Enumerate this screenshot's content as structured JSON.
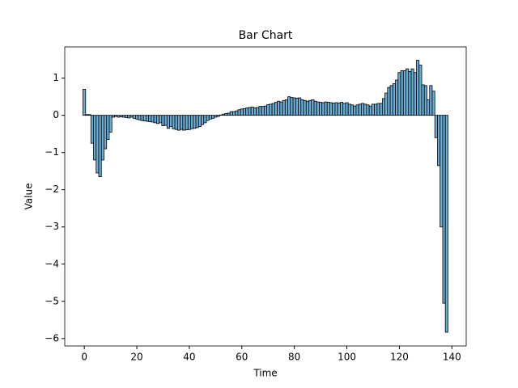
{
  "chart_data": {
    "type": "bar",
    "title": "Bar Chart",
    "x_label": "Time",
    "y_label": "Value",
    "x": [
      0,
      1,
      2,
      3,
      4,
      5,
      6,
      7,
      8,
      9,
      10,
      11,
      12,
      13,
      14,
      15,
      16,
      17,
      18,
      19,
      20,
      21,
      22,
      23,
      24,
      25,
      26,
      27,
      28,
      29,
      30,
      31,
      32,
      33,
      34,
      35,
      36,
      37,
      38,
      39,
      40,
      41,
      42,
      43,
      44,
      45,
      46,
      47,
      48,
      49,
      50,
      51,
      52,
      53,
      54,
      55,
      56,
      57,
      58,
      59,
      60,
      61,
      62,
      63,
      64,
      65,
      66,
      67,
      68,
      69,
      70,
      71,
      72,
      73,
      74,
      75,
      76,
      77,
      78,
      79,
      80,
      81,
      82,
      83,
      84,
      85,
      86,
      87,
      88,
      89,
      90,
      91,
      92,
      93,
      94,
      95,
      96,
      97,
      98,
      99,
      100,
      101,
      102,
      103,
      104,
      105,
      106,
      107,
      108,
      109,
      110,
      111,
      112,
      113,
      114,
      115,
      116,
      117,
      118,
      119,
      120,
      121,
      122,
      123,
      124,
      125,
      126,
      127,
      128,
      129,
      130,
      131,
      132,
      133,
      134,
      135,
      136,
      137,
      138
    ],
    "values": [
      0.7,
      0.02,
      0.02,
      -0.75,
      -1.2,
      -1.55,
      -1.65,
      -1.2,
      -0.9,
      -0.65,
      -0.45,
      -0.05,
      -0.03,
      -0.05,
      -0.04,
      -0.05,
      -0.06,
      -0.07,
      -0.05,
      -0.08,
      -0.1,
      -0.12,
      -0.14,
      -0.15,
      -0.16,
      -0.17,
      -0.18,
      -0.2,
      -0.22,
      -0.2,
      -0.28,
      -0.27,
      -0.35,
      -0.3,
      -0.36,
      -0.38,
      -0.4,
      -0.38,
      -0.4,
      -0.39,
      -0.38,
      -0.36,
      -0.35,
      -0.33,
      -0.3,
      -0.25,
      -0.2,
      -0.14,
      -0.1,
      -0.08,
      -0.05,
      -0.03,
      0.01,
      0.03,
      0.05,
      0.06,
      0.1,
      0.1,
      0.12,
      0.15,
      0.17,
      0.18,
      0.2,
      0.21,
      0.22,
      0.2,
      0.21,
      0.24,
      0.24,
      0.25,
      0.29,
      0.3,
      0.32,
      0.35,
      0.38,
      0.36,
      0.4,
      0.42,
      0.5,
      0.48,
      0.47,
      0.46,
      0.47,
      0.42,
      0.4,
      0.38,
      0.4,
      0.42,
      0.38,
      0.36,
      0.35,
      0.34,
      0.36,
      0.35,
      0.34,
      0.33,
      0.34,
      0.33,
      0.35,
      0.32,
      0.34,
      0.3,
      0.28,
      0.25,
      0.28,
      0.3,
      0.32,
      0.3,
      0.28,
      0.25,
      0.3,
      0.3,
      0.32,
      0.32,
      0.45,
      0.6,
      0.75,
      0.8,
      0.85,
      0.95,
      1.15,
      1.2,
      1.2,
      1.25,
      1.18,
      1.25,
      1.15,
      1.48,
      1.35,
      0.82,
      0.8,
      0.42,
      0.8,
      0.65,
      -0.6,
      -1.35,
      -3.0,
      -5.05,
      -5.83
    ],
    "color": "#6baed6",
    "edge_color": "#000000",
    "xlim": [
      -7.45,
      145.45
    ],
    "xticks": [
      0,
      20,
      40,
      60,
      80,
      100,
      120,
      140
    ],
    "ylim": [
      -6.2,
      1.84
    ],
    "yticks": [
      {
        "value": -6,
        "label": "−6"
      },
      {
        "value": -5,
        "label": "−5"
      },
      {
        "value": -4,
        "label": "−4"
      },
      {
        "value": -3,
        "label": "−3"
      },
      {
        "value": -2,
        "label": "−2"
      },
      {
        "value": -1,
        "label": "−1"
      },
      0,
      1
    ],
    "grid": false
  }
}
